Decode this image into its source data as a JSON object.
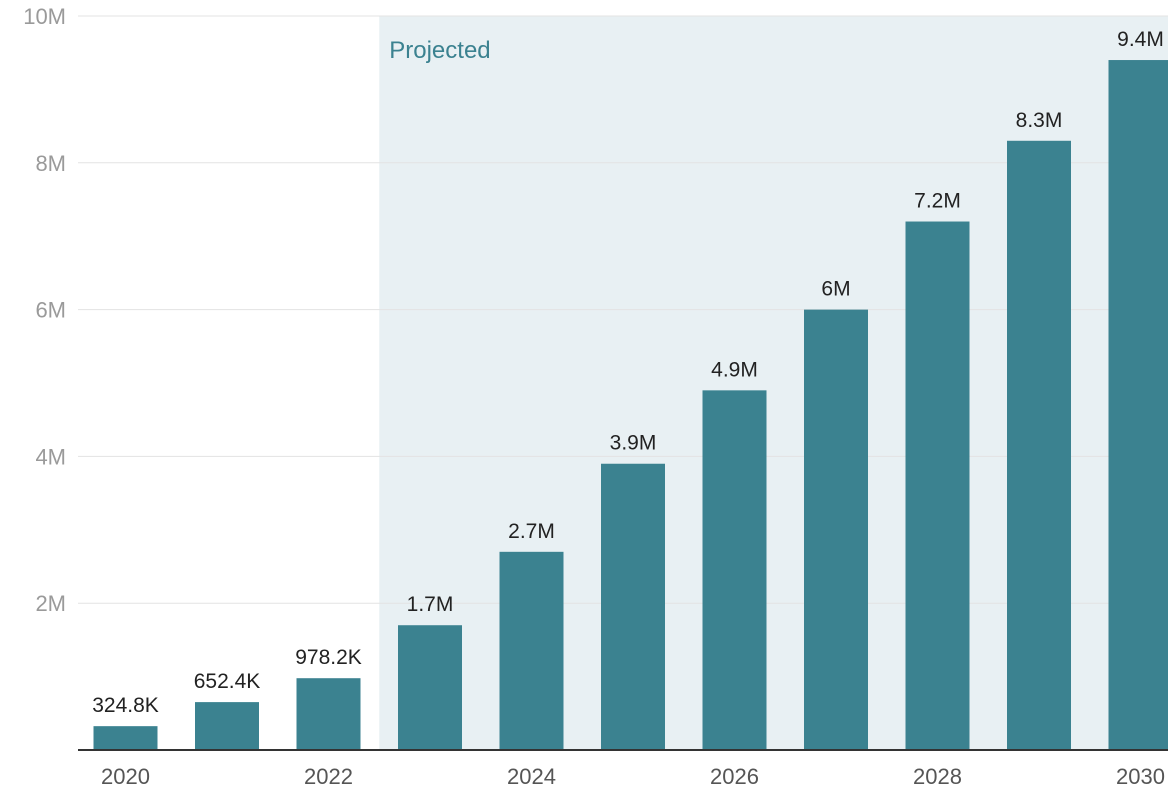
{
  "colors": {
    "bar": "#3b8290",
    "projected_band": "#e8f0f3",
    "projected_text": "#3b8290"
  },
  "chart_data": {
    "type": "bar",
    "title": "",
    "xlabel": "",
    "ylabel": "",
    "ylim": [
      0,
      10000000
    ],
    "grid": true,
    "categories": [
      "2020",
      "2021",
      "2022",
      "2023",
      "2024",
      "2025",
      "2026",
      "2027",
      "2028",
      "2029",
      "2030"
    ],
    "values": [
      324800,
      652400,
      978200,
      1700000,
      2700000,
      3900000,
      4900000,
      6000000,
      7200000,
      8300000,
      9400000
    ],
    "value_labels": [
      "324.8K",
      "652.4K",
      "978.2K",
      "1.7M",
      "2.7M",
      "3.9M",
      "4.9M",
      "6M",
      "7.2M",
      "8.3M",
      "9.4M"
    ],
    "y_ticks": [
      {
        "value": 2000000,
        "label": "2M"
      },
      {
        "value": 4000000,
        "label": "4M"
      },
      {
        "value": 6000000,
        "label": "6M"
      },
      {
        "value": 8000000,
        "label": "8M"
      },
      {
        "value": 10000000,
        "label": "10M"
      }
    ],
    "x_tick_labels": [
      "2020",
      "2022",
      "2024",
      "2026",
      "2028",
      "2030"
    ],
    "annotations": [
      {
        "text": "Projected",
        "from_category": "2023",
        "to_category": "2030"
      }
    ]
  }
}
